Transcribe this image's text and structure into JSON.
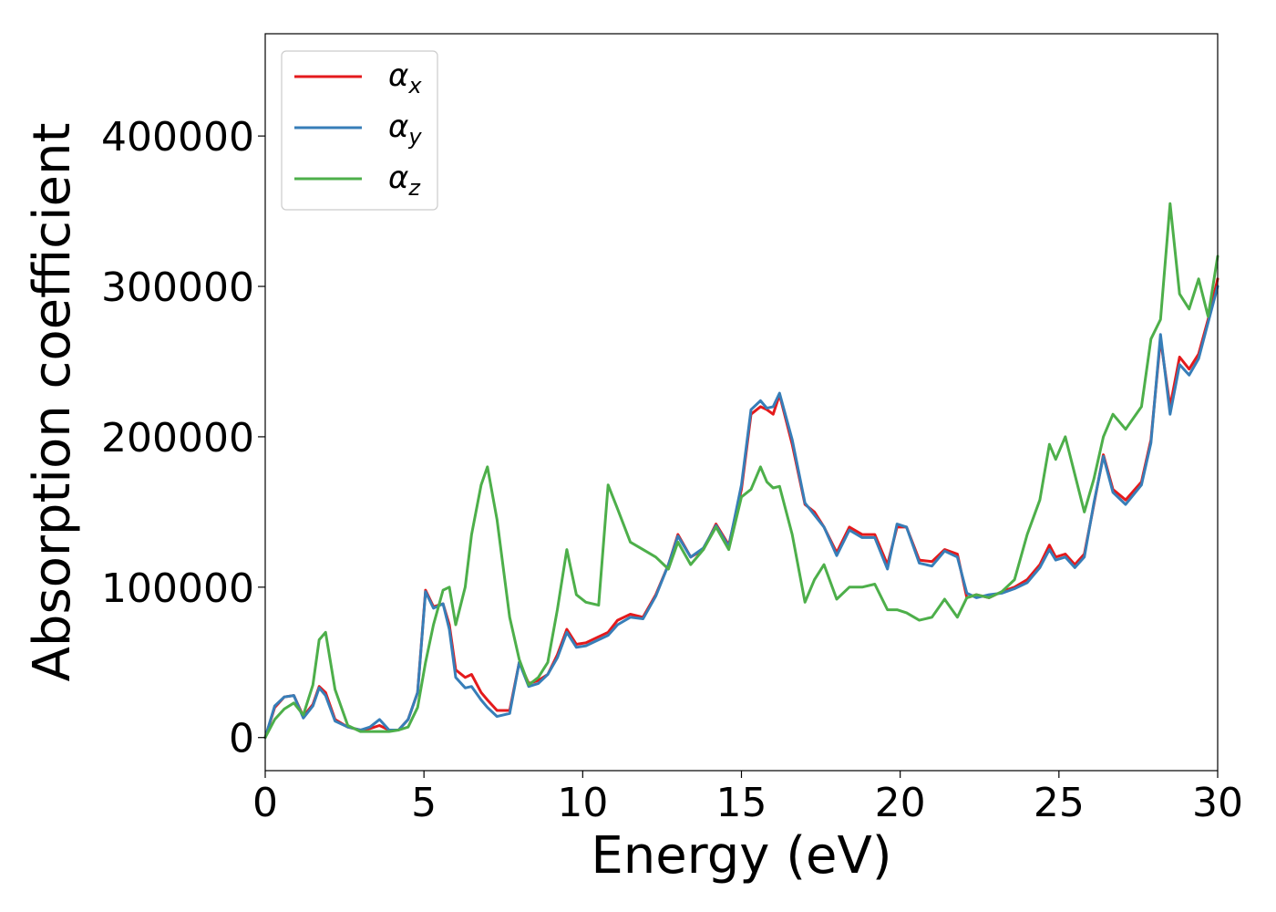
{
  "chart_data": {
    "type": "line",
    "title": "",
    "xlabel": "Energy (eV)",
    "ylabel": "Absorption coefficient",
    "xlim": [
      0,
      30
    ],
    "ylim": [
      -22000,
      468000
    ],
    "xticks": [
      0,
      5,
      10,
      15,
      20,
      25,
      30
    ],
    "yticks": [
      0,
      100000,
      200000,
      300000,
      400000
    ],
    "xtick_labels": [
      "0",
      "5",
      "10",
      "15",
      "20",
      "25",
      "30"
    ],
    "ytick_labels": [
      "0",
      "100000",
      "200000",
      "300000",
      "400000"
    ],
    "grid": false,
    "legend_position": "top-left",
    "series": [
      {
        "name": "α_x",
        "label_main": "α",
        "label_sub": "x",
        "color": "#e41a1c",
        "x": [
          0,
          0.3,
          0.6,
          0.9,
          1.2,
          1.5,
          1.7,
          1.9,
          2.2,
          2.6,
          3.0,
          3.3,
          3.6,
          3.9,
          4.2,
          4.5,
          4.8,
          5.05,
          5.3,
          5.6,
          5.8,
          6.0,
          6.3,
          6.5,
          6.8,
          7.0,
          7.3,
          7.7,
          8.0,
          8.3,
          8.6,
          8.9,
          9.2,
          9.5,
          9.8,
          10.1,
          10.5,
          10.8,
          11.1,
          11.5,
          11.9,
          12.3,
          12.7,
          13.0,
          13.4,
          13.8,
          14.2,
          14.6,
          15.0,
          15.3,
          15.6,
          15.8,
          16.0,
          16.2,
          16.6,
          17.0,
          17.3,
          17.6,
          18.0,
          18.4,
          18.8,
          19.2,
          19.6,
          19.9,
          20.2,
          20.6,
          21.0,
          21.4,
          21.8,
          22.1,
          22.4,
          22.8,
          23.2,
          23.6,
          24.0,
          24.4,
          24.7,
          24.9,
          25.2,
          25.5,
          25.8,
          26.1,
          26.4,
          26.7,
          27.1,
          27.6,
          27.9,
          28.2,
          28.5,
          28.8,
          29.1,
          29.4,
          29.7,
          30.0
        ],
        "y": [
          0,
          20000,
          27000,
          28000,
          14000,
          22000,
          34000,
          30000,
          12000,
          7000,
          5000,
          6000,
          8000,
          5000,
          5000,
          12000,
          30000,
          98000,
          87000,
          89000,
          75000,
          45000,
          40000,
          42000,
          30000,
          25000,
          18000,
          18000,
          50000,
          36000,
          38000,
          42000,
          55000,
          72000,
          62000,
          63000,
          67000,
          70000,
          78000,
          82000,
          80000,
          95000,
          115000,
          135000,
          120000,
          125000,
          142000,
          128000,
          165000,
          215000,
          220000,
          218000,
          215000,
          228000,
          195000,
          155000,
          150000,
          140000,
          123000,
          140000,
          135000,
          135000,
          115000,
          140000,
          140000,
          118000,
          117000,
          125000,
          122000,
          93000,
          95000,
          93000,
          97000,
          100000,
          105000,
          115000,
          128000,
          120000,
          122000,
          115000,
          122000,
          155000,
          188000,
          165000,
          158000,
          170000,
          198000,
          265000,
          220000,
          253000,
          245000,
          255000,
          278000,
          305000
        ]
      },
      {
        "name": "α_y",
        "label_main": "α",
        "label_sub": "y",
        "color": "#377eb8",
        "x": [
          0,
          0.3,
          0.6,
          0.9,
          1.2,
          1.5,
          1.7,
          1.9,
          2.2,
          2.6,
          3.0,
          3.3,
          3.6,
          3.9,
          4.2,
          4.5,
          4.8,
          5.05,
          5.3,
          5.6,
          5.8,
          6.0,
          6.3,
          6.5,
          6.8,
          7.0,
          7.3,
          7.7,
          8.0,
          8.3,
          8.6,
          8.9,
          9.2,
          9.5,
          9.8,
          10.1,
          10.5,
          10.8,
          11.1,
          11.5,
          11.9,
          12.3,
          12.7,
          13.0,
          13.4,
          13.8,
          14.2,
          14.6,
          15.0,
          15.3,
          15.6,
          15.8,
          16.0,
          16.2,
          16.6,
          17.0,
          17.3,
          17.6,
          18.0,
          18.4,
          18.8,
          19.2,
          19.6,
          19.9,
          20.2,
          20.6,
          21.0,
          21.4,
          21.8,
          22.1,
          22.4,
          22.8,
          23.2,
          23.6,
          24.0,
          24.4,
          24.7,
          24.9,
          25.2,
          25.5,
          25.8,
          26.1,
          26.4,
          26.7,
          27.1,
          27.6,
          27.9,
          28.2,
          28.5,
          28.8,
          29.1,
          29.4,
          29.7,
          30.0
        ],
        "y": [
          0,
          21000,
          27000,
          28000,
          13000,
          21000,
          33000,
          28000,
          11000,
          7000,
          5000,
          7000,
          12000,
          5000,
          5000,
          12000,
          30000,
          97000,
          86000,
          89000,
          72000,
          40000,
          33000,
          34000,
          25000,
          20000,
          14000,
          16000,
          50000,
          34000,
          36000,
          42000,
          53000,
          70000,
          60000,
          61000,
          65000,
          68000,
          75000,
          80000,
          79000,
          94000,
          115000,
          134000,
          120000,
          126000,
          141000,
          127000,
          168000,
          218000,
          224000,
          219000,
          220000,
          229000,
          198000,
          156000,
          148000,
          140000,
          121000,
          138000,
          133000,
          133000,
          112000,
          142000,
          140000,
          116000,
          114000,
          124000,
          120000,
          96000,
          93000,
          95000,
          96000,
          99000,
          103000,
          113000,
          125000,
          118000,
          120000,
          113000,
          120000,
          156000,
          187000,
          163000,
          155000,
          168000,
          196000,
          268000,
          215000,
          248000,
          241000,
          252000,
          276000,
          300000
        ]
      },
      {
        "name": "α_z",
        "label_main": "α",
        "label_sub": "z",
        "color": "#4daf4a",
        "x": [
          0,
          0.3,
          0.6,
          0.9,
          1.2,
          1.5,
          1.7,
          1.9,
          2.2,
          2.6,
          3.0,
          3.3,
          3.6,
          3.9,
          4.2,
          4.5,
          4.8,
          5.05,
          5.3,
          5.6,
          5.8,
          6.0,
          6.3,
          6.5,
          6.8,
          7.0,
          7.3,
          7.7,
          8.0,
          8.3,
          8.6,
          8.9,
          9.2,
          9.5,
          9.8,
          10.1,
          10.5,
          10.8,
          11.1,
          11.5,
          11.9,
          12.3,
          12.7,
          13.0,
          13.4,
          13.8,
          14.2,
          14.6,
          15.0,
          15.3,
          15.6,
          15.8,
          16.0,
          16.2,
          16.6,
          17.0,
          17.3,
          17.6,
          18.0,
          18.4,
          18.8,
          19.2,
          19.6,
          19.9,
          20.2,
          20.6,
          21.0,
          21.4,
          21.8,
          22.1,
          22.4,
          22.8,
          23.2,
          23.6,
          24.0,
          24.4,
          24.7,
          24.9,
          25.2,
          25.5,
          25.8,
          26.1,
          26.4,
          26.7,
          27.1,
          27.6,
          27.9,
          28.2,
          28.5,
          28.8,
          29.1,
          29.4,
          29.7,
          30.0
        ],
        "y": [
          0,
          12000,
          19000,
          23000,
          15000,
          35000,
          65000,
          70000,
          32000,
          8000,
          4000,
          4000,
          4000,
          4000,
          5000,
          7000,
          20000,
          50000,
          75000,
          98000,
          100000,
          75000,
          100000,
          135000,
          168000,
          180000,
          145000,
          80000,
          52000,
          35000,
          40000,
          50000,
          85000,
          125000,
          95000,
          90000,
          88000,
          168000,
          152000,
          130000,
          125000,
          120000,
          112000,
          130000,
          115000,
          125000,
          140000,
          125000,
          160000,
          165000,
          180000,
          170000,
          166000,
          167000,
          135000,
          90000,
          105000,
          115000,
          92000,
          100000,
          100000,
          102000,
          85000,
          85000,
          83000,
          78000,
          80000,
          92000,
          80000,
          93000,
          95000,
          93000,
          97000,
          105000,
          135000,
          158000,
          195000,
          185000,
          200000,
          175000,
          150000,
          172000,
          200000,
          215000,
          205000,
          220000,
          265000,
          278000,
          355000,
          295000,
          285000,
          305000,
          280000,
          320000
        ]
      }
    ]
  }
}
